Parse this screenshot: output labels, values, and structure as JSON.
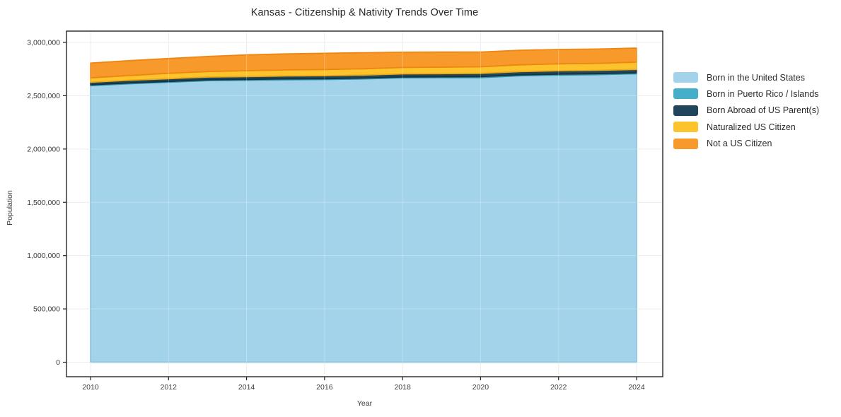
{
  "page": {
    "background": "#ffffff"
  },
  "chart_data": {
    "type": "area",
    "stacked": true,
    "title": "Kansas - Citizenship & Nativity Trends Over Time",
    "xlabel": "Year",
    "ylabel": "Population",
    "x": [
      2010,
      2011,
      2012,
      2013,
      2014,
      2015,
      2016,
      2017,
      2018,
      2019,
      2020,
      2021,
      2022,
      2023,
      2024
    ],
    "series": [
      {
        "name": "Born in the United States",
        "color": "#a3d3ea",
        "edge_color": "#7fbcd9",
        "values": [
          2594000,
          2612000,
          2626000,
          2641000,
          2645000,
          2650000,
          2652000,
          2658000,
          2668000,
          2670000,
          2670000,
          2687000,
          2694000,
          2698000,
          2706000
        ]
      },
      {
        "name": "Born in Puerto Rico / Islands",
        "color": "#45afc9",
        "edge_color": "#2f93ad",
        "values": [
          8000,
          8000,
          8000,
          8000,
          8000,
          8000,
          8000,
          8000,
          8000,
          8000,
          9000,
          9000,
          9000,
          9000,
          9000
        ]
      },
      {
        "name": "Born Abroad of US Parent(s)",
        "color": "#21455a",
        "edge_color": "#16323f",
        "values": [
          24000,
          25000,
          26000,
          26000,
          27000,
          27000,
          28000,
          28000,
          29000,
          29000,
          30000,
          30000,
          31000,
          31000,
          32000
        ]
      },
      {
        "name": "Naturalized US Citizen",
        "color": "#fcc32d",
        "edge_color": "#eda816",
        "values": [
          42000,
          45000,
          50000,
          52000,
          55000,
          57000,
          58000,
          59000,
          60000,
          61000,
          62000,
          64000,
          65000,
          66000,
          68000
        ]
      },
      {
        "name": "Not a US Citizen",
        "color": "#f8992b",
        "edge_color": "#ee8612",
        "values": [
          138000,
          139000,
          139000,
          141000,
          148000,
          150000,
          152000,
          150000,
          143000,
          141000,
          139000,
          136000,
          135000,
          134000,
          132000
        ]
      }
    ],
    "ylim": [
      0,
      3000000
    ],
    "yticks": [
      0,
      500000,
      1000000,
      1500000,
      2000000,
      2500000,
      3000000
    ],
    "ytick_labels": [
      "0",
      "500,000",
      "1,000,000",
      "1,500,000",
      "2,000,000",
      "2,500,000",
      "3,000,000"
    ],
    "xticks": [
      2010,
      2012,
      2014,
      2016,
      2018,
      2020,
      2022,
      2024
    ],
    "xtick_labels": [
      "2010",
      "2012",
      "2014",
      "2016",
      "2018",
      "2020",
      "2022",
      "2024"
    ],
    "grid": true,
    "legend_position": "right"
  },
  "style_colors": {
    "grid": "#e7e7e7",
    "grid_over_area": "rgba(255,255,255,0.28)",
    "spine": "#262626",
    "tick": "#262626",
    "tick_label": "#3c3c3c"
  }
}
